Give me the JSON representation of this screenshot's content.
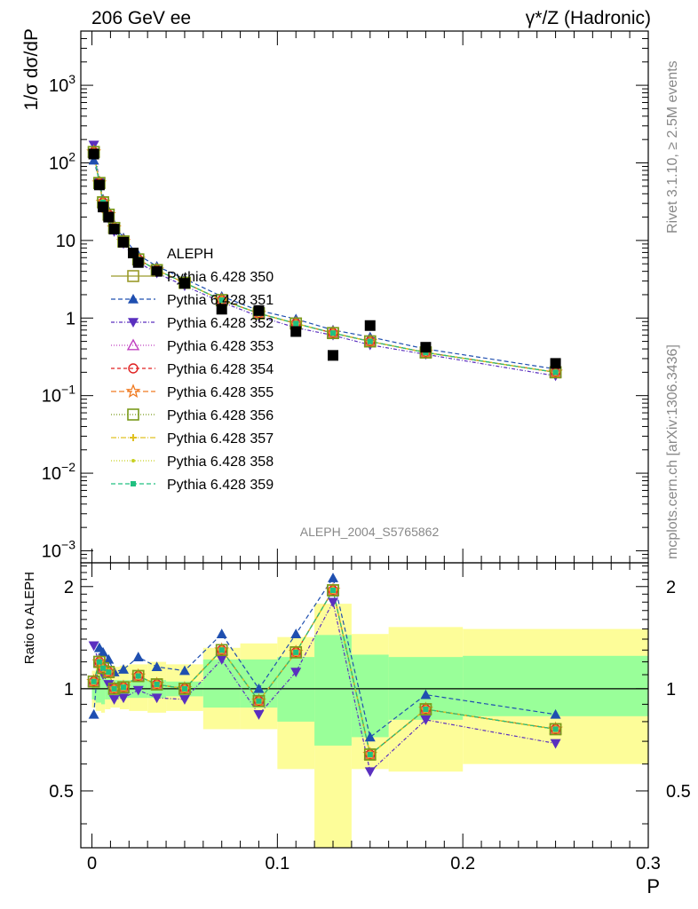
{
  "header": {
    "left_title": "206 GeV ee",
    "right_title_prefix": "γ*/Z",
    "right_title_suffix": "(Hadronic)"
  },
  "side_texts": {
    "rivet": "Rivet 3.1.10, ≥ 2.5M events",
    "mcplots": "mcplots.cern.ch [arXiv:1306.3436]"
  },
  "chart_data": [
    {
      "type": "scatter",
      "panel": "main",
      "ylabel": "1/σ  dσ/dP",
      "yscale": "log",
      "ylim": [
        0.0007,
        5000
      ],
      "xlim": [
        -0.006,
        0.3
      ],
      "watermark": "ALEPH_2004_S5765862",
      "yticks": [
        {
          "v": 0.001,
          "m": "10",
          "e": "−3"
        },
        {
          "v": 0.01,
          "m": "10",
          "e": "−2"
        },
        {
          "v": 0.1,
          "m": "10",
          "e": "−1"
        },
        {
          "v": 1,
          "m": "1",
          "e": ""
        },
        {
          "v": 10,
          "m": "10",
          "e": ""
        },
        {
          "v": 100,
          "m": "10",
          "e": "2"
        },
        {
          "v": 1000,
          "m": "10",
          "e": "3"
        }
      ],
      "x": [
        0.001,
        0.004,
        0.006,
        0.009,
        0.012,
        0.017,
        0.025,
        0.035,
        0.05,
        0.07,
        0.09,
        0.11,
        0.13,
        0.15,
        0.18,
        0.25
      ],
      "data_name": "ALEPH",
      "data": [
        130,
        52,
        27,
        20,
        14,
        9.5,
        5.2,
        4.0,
        2.8,
        1.3,
        1.25,
        0.67,
        0.33,
        0.8,
        0.42,
        0.26
      ],
      "series": [
        {
          "name": "Pythia 6.428 350",
          "color": "#9a9a2a",
          "marker": "square-open",
          "dash": "",
          "values": [
            138,
            55,
            31,
            21.5,
            14.5,
            9.7,
            5.7,
            4.15,
            2.85,
            1.7,
            1.15,
            0.85,
            0.64,
            0.5,
            0.36,
            0.2
          ]
        },
        {
          "name": "Pythia 6.428 351",
          "color": "#1f4fb0",
          "marker": "triangle-up",
          "dash": "5,3",
          "values": [
            108,
            59,
            34,
            24,
            16,
            10.8,
            6.5,
            4.65,
            3.2,
            1.9,
            1.25,
            0.97,
            0.7,
            0.57,
            0.4,
            0.22
          ]
        },
        {
          "name": "Pythia 6.428 352",
          "color": "#5a2fbf",
          "marker": "triangle-down",
          "dash": "4,2,1,2",
          "values": [
            170,
            57,
            28,
            19,
            13,
            9.1,
            5.2,
            3.8,
            2.6,
            1.6,
            1.05,
            0.75,
            0.6,
            0.45,
            0.34,
            0.18
          ]
        },
        {
          "name": "Pythia 6.428 353",
          "color": "#c040c0",
          "marker": "triangle-open",
          "dash": "1,2",
          "values": [
            138,
            55,
            31,
            21.5,
            14.5,
            9.7,
            5.7,
            4.15,
            2.85,
            1.7,
            1.15,
            0.85,
            0.64,
            0.5,
            0.36,
            0.2
          ]
        },
        {
          "name": "Pythia 6.428 354",
          "color": "#e02020",
          "marker": "circle-open",
          "dash": "4,3",
          "values": [
            138,
            55,
            31,
            21.5,
            14.5,
            9.7,
            5.7,
            4.15,
            2.85,
            1.7,
            1.15,
            0.85,
            0.64,
            0.5,
            0.36,
            0.2
          ]
        },
        {
          "name": "Pythia 6.428 355",
          "color": "#f07a20",
          "marker": "star-open",
          "dash": "6,3",
          "values": [
            138,
            55,
            31,
            21.5,
            14.5,
            9.7,
            5.7,
            4.15,
            2.85,
            1.7,
            1.15,
            0.85,
            0.64,
            0.5,
            0.36,
            0.2
          ]
        },
        {
          "name": "Pythia 6.428 356",
          "color": "#7a9a1a",
          "marker": "square-open",
          "dash": "1,2",
          "values": [
            138,
            55,
            31,
            21.5,
            14.5,
            9.7,
            5.7,
            4.15,
            2.85,
            1.7,
            1.15,
            0.85,
            0.64,
            0.5,
            0.36,
            0.2
          ]
        },
        {
          "name": "Pythia 6.428 357",
          "color": "#e0c020",
          "marker": "cross-small",
          "dash": "6,2,1,2",
          "values": [
            138,
            55,
            31,
            21.5,
            14.5,
            9.7,
            5.7,
            4.15,
            2.85,
            1.7,
            1.15,
            0.85,
            0.64,
            0.5,
            0.36,
            0.2
          ]
        },
        {
          "name": "Pythia 6.428 358",
          "color": "#c8d020",
          "marker": "dot",
          "dash": "1,2",
          "values": [
            138,
            55,
            31,
            21.5,
            14.5,
            9.7,
            5.7,
            4.15,
            2.85,
            1.7,
            1.15,
            0.85,
            0.64,
            0.5,
            0.36,
            0.2
          ]
        },
        {
          "name": "Pythia 6.428 359",
          "color": "#20c080",
          "marker": "square-small",
          "dash": "5,3",
          "values": [
            138,
            55,
            31,
            21.5,
            14.5,
            9.7,
            5.7,
            4.15,
            2.85,
            1.7,
            1.15,
            0.85,
            0.64,
            0.5,
            0.36,
            0.2
          ]
        }
      ]
    },
    {
      "type": "line",
      "panel": "ratio",
      "ylabel": "Ratio to ALEPH",
      "xlabel": "P",
      "yscale": "log",
      "ylim": [
        0.34,
        2.35
      ],
      "xlim": [
        -0.006,
        0.3
      ],
      "yticks": [
        0.5,
        1,
        2
      ],
      "xticks": [
        0,
        0.1,
        0.2,
        0.3
      ],
      "reference": 1,
      "band_edges": [
        0,
        0.002,
        0.005,
        0.007,
        0.01,
        0.015,
        0.02,
        0.03,
        0.04,
        0.06,
        0.08,
        0.1,
        0.12,
        0.14,
        0.16,
        0.2,
        0.3
      ],
      "band_inner": [
        [
          0.93,
          1.07
        ],
        [
          0.91,
          1.09
        ],
        [
          0.9,
          1.1
        ],
        [
          0.93,
          1.07
        ],
        [
          0.94,
          1.06
        ],
        [
          0.94,
          1.06
        ],
        [
          0.94,
          1.06
        ],
        [
          0.94,
          1.06
        ],
        [
          0.95,
          1.05
        ],
        [
          0.88,
          1.22
        ],
        [
          0.88,
          1.22
        ],
        [
          0.8,
          1.24
        ],
        [
          0.68,
          1.44
        ],
        [
          0.72,
          1.26
        ],
        [
          0.81,
          1.24
        ],
        [
          0.83,
          1.25
        ]
      ],
      "band_outer": [
        [
          0.88,
          1.13
        ],
        [
          0.86,
          1.17
        ],
        [
          0.85,
          1.18
        ],
        [
          0.87,
          1.15
        ],
        [
          0.88,
          1.16
        ],
        [
          0.87,
          1.17
        ],
        [
          0.86,
          1.18
        ],
        [
          0.85,
          1.2
        ],
        [
          0.86,
          1.18
        ],
        [
          0.76,
          1.32
        ],
        [
          0.76,
          1.36
        ],
        [
          0.58,
          1.42
        ],
        [
          0.34,
          1.78
        ],
        [
          0.58,
          1.45
        ],
        [
          0.57,
          1.52
        ],
        [
          0.6,
          1.5
        ]
      ],
      "series": [
        {
          "name": "Pythia 6.428 350",
          "values": [
            1.05,
            1.2,
            1.15,
            1.12,
            1.0,
            1.01,
            1.09,
            1.03,
            1.0,
            1.3,
            0.92,
            1.28,
            1.95,
            0.64,
            0.87,
            0.76
          ]
        },
        {
          "name": "Pythia 6.428 351",
          "values": [
            0.84,
            1.32,
            1.28,
            1.22,
            1.12,
            1.14,
            1.24,
            1.16,
            1.13,
            1.45,
            1.0,
            1.45,
            2.12,
            0.72,
            0.96,
            0.84
          ]
        },
        {
          "name": "Pythia 6.428 352",
          "values": [
            1.34,
            1.18,
            1.1,
            1.03,
            0.93,
            0.94,
            0.99,
            0.94,
            0.93,
            1.22,
            0.84,
            1.12,
            1.8,
            0.57,
            0.81,
            0.69
          ]
        },
        {
          "name": "Pythia 6.428 353",
          "values": [
            1.05,
            1.2,
            1.15,
            1.12,
            1.0,
            1.01,
            1.09,
            1.03,
            1.0,
            1.3,
            0.92,
            1.28,
            1.95,
            0.64,
            0.87,
            0.76
          ]
        },
        {
          "name": "Pythia 6.428 354",
          "values": [
            1.05,
            1.2,
            1.15,
            1.12,
            1.0,
            1.01,
            1.09,
            1.03,
            1.0,
            1.3,
            0.92,
            1.28,
            1.95,
            0.64,
            0.87,
            0.76
          ]
        },
        {
          "name": "Pythia 6.428 355",
          "values": [
            1.05,
            1.2,
            1.15,
            1.12,
            1.0,
            1.01,
            1.09,
            1.03,
            1.0,
            1.3,
            0.92,
            1.28,
            1.95,
            0.64,
            0.87,
            0.76
          ]
        },
        {
          "name": "Pythia 6.428 356",
          "values": [
            1.05,
            1.2,
            1.15,
            1.12,
            1.0,
            1.01,
            1.09,
            1.03,
            1.0,
            1.3,
            0.92,
            1.28,
            1.95,
            0.64,
            0.87,
            0.76
          ]
        },
        {
          "name": "Pythia 6.428 357",
          "values": [
            1.05,
            1.2,
            1.15,
            1.12,
            1.0,
            1.01,
            1.09,
            1.03,
            1.0,
            1.3,
            0.92,
            1.28,
            1.95,
            0.64,
            0.87,
            0.76
          ]
        },
        {
          "name": "Pythia 6.428 358",
          "values": [
            1.05,
            1.2,
            1.15,
            1.12,
            1.0,
            1.01,
            1.09,
            1.03,
            1.0,
            1.3,
            0.92,
            1.28,
            1.95,
            0.64,
            0.87,
            0.76
          ]
        },
        {
          "name": "Pythia 6.428 359",
          "values": [
            1.05,
            1.2,
            1.15,
            1.12,
            1.0,
            1.01,
            1.09,
            1.03,
            1.0,
            1.3,
            0.92,
            1.28,
            1.95,
            0.64,
            0.87,
            0.76
          ]
        }
      ]
    }
  ]
}
